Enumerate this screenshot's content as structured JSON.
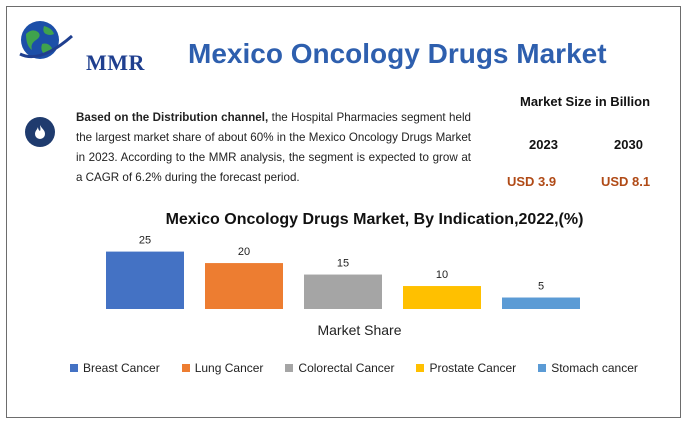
{
  "brand": {
    "logo_text": "MMR"
  },
  "title": "Mexico Oncology Drugs Market",
  "info": {
    "lead": "Based on the Distribution channel,",
    "body": " the Hospital Pharmacies segment held the largest market share of about 60% in the Mexico Oncology Drugs Market in 2023. According to the MMR analysis, the segment is expected to grow at a CAGR of 6.2% during the forecast period."
  },
  "market_size": {
    "title": "Market Size in Billion",
    "years": [
      "2023",
      "2030"
    ],
    "values": [
      "USD 3.9",
      "USD 8.1"
    ]
  },
  "colors": {
    "title": "#2e5fae",
    "value": "#b04a16",
    "icon_bg": "#1f3b6e"
  },
  "chart_data": {
    "type": "bar",
    "title": "Mexico Oncology Drugs Market, By Indication,2022,(%)",
    "xlabel": "Market Share",
    "ylabel": "",
    "ylim": [
      0,
      27
    ],
    "grid": false,
    "legend_position": "bottom",
    "series": [
      {
        "name": "Breast Cancer",
        "value": 25,
        "color": "#4472c4"
      },
      {
        "name": "Lung Cancer",
        "value": 20,
        "color": "#ed7d31"
      },
      {
        "name": "Colorectal Cancer",
        "value": 15,
        "color": "#a5a5a5"
      },
      {
        "name": "Prostate Cancer",
        "value": 10,
        "color": "#ffc000"
      },
      {
        "name": "Stomach cancer",
        "value": 5,
        "color": "#5b9bd5"
      }
    ]
  }
}
